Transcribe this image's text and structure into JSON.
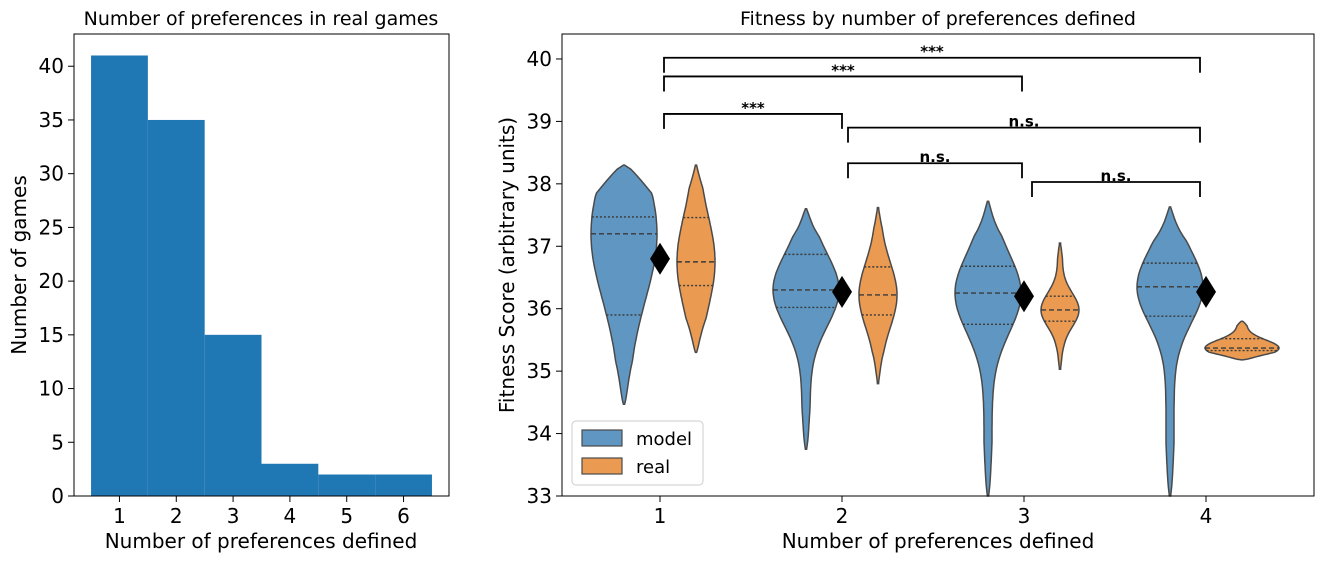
{
  "chart_data": [
    {
      "type": "bar",
      "title": "Number of preferences in real games",
      "xlabel": "Number of preferences defined",
      "ylabel": "Number of games",
      "categories": [
        "1",
        "2",
        "3",
        "4",
        "5",
        "6"
      ],
      "values": [
        41,
        35,
        15,
        3,
        2,
        2
      ],
      "xlim": [
        0.2,
        6.8
      ],
      "ylim": [
        0,
        43
      ],
      "yticks": [
        "0",
        "5",
        "10",
        "15",
        "20",
        "25",
        "30",
        "35",
        "40"
      ],
      "color": "#1f77b4",
      "grid": false
    },
    {
      "type": "violin",
      "title": "Fitness by number of preferences defined",
      "xlabel": "Number of preferences defined",
      "ylabel": "Fitness Score (arbitrary units)",
      "categories": [
        "1",
        "2",
        "3",
        "4"
      ],
      "ylim": [
        33,
        40.4
      ],
      "yticks": [
        "33",
        "34",
        "35",
        "36",
        "37",
        "38",
        "39",
        "40"
      ],
      "legend": {
        "placement": "bottom-left",
        "entries": [
          "model",
          "real"
        ]
      },
      "colors": {
        "model": "#5f97c2",
        "real": "#eb9a51",
        "edge": "#4a4a4a",
        "marker": "#000000"
      },
      "series": [
        {
          "name": "model",
          "violins": [
            {
              "x": 1,
              "min": 34.47,
              "max": 38.3,
              "q1": 35.9,
              "median": 37.2,
              "q3": 37.47
            },
            {
              "x": 2,
              "min": 33.75,
              "max": 37.6,
              "q1": 36.02,
              "median": 36.3,
              "q3": 36.87
            },
            {
              "x": 3,
              "min": 33.0,
              "max": 37.72,
              "q1": 35.75,
              "median": 36.25,
              "q3": 36.68
            },
            {
              "x": 4,
              "min": 33.0,
              "max": 37.63,
              "q1": 35.88,
              "median": 36.35,
              "q3": 36.73
            }
          ]
        },
        {
          "name": "real",
          "violins": [
            {
              "x": 1,
              "min": 35.3,
              "max": 38.3,
              "q1": 36.37,
              "median": 36.75,
              "q3": 37.46
            },
            {
              "x": 2,
              "min": 34.8,
              "max": 37.62,
              "q1": 35.9,
              "median": 36.22,
              "q3": 36.67
            },
            {
              "x": 3,
              "min": 35.03,
              "max": 37.05,
              "q1": 35.8,
              "median": 35.98,
              "q3": 36.2
            },
            {
              "x": 4,
              "min": 35.18,
              "max": 35.8,
              "q1": 35.33,
              "median": 35.37,
              "q3": 35.52
            }
          ]
        }
      ],
      "means": [
        {
          "x": 1,
          "value": 36.8
        },
        {
          "x": 2,
          "value": 36.27
        },
        {
          "x": 3,
          "value": 36.2
        },
        {
          "x": 4,
          "value": 36.27
        }
      ],
      "annotations": [
        {
          "from": 1,
          "to": 4,
          "y": 40.02,
          "label": "***"
        },
        {
          "from": 1,
          "to": 3,
          "y": 39.72,
          "label": "***"
        },
        {
          "from": 1,
          "to": 2,
          "y": 39.12,
          "label": "***"
        },
        {
          "from": 2,
          "to": 4,
          "y": 38.9,
          "label": "n.s."
        },
        {
          "from": 2,
          "to": 3,
          "y": 38.33,
          "label": "n.s."
        },
        {
          "from": 3,
          "to": 4,
          "y": 38.03,
          "label": "n.s."
        }
      ]
    }
  ]
}
